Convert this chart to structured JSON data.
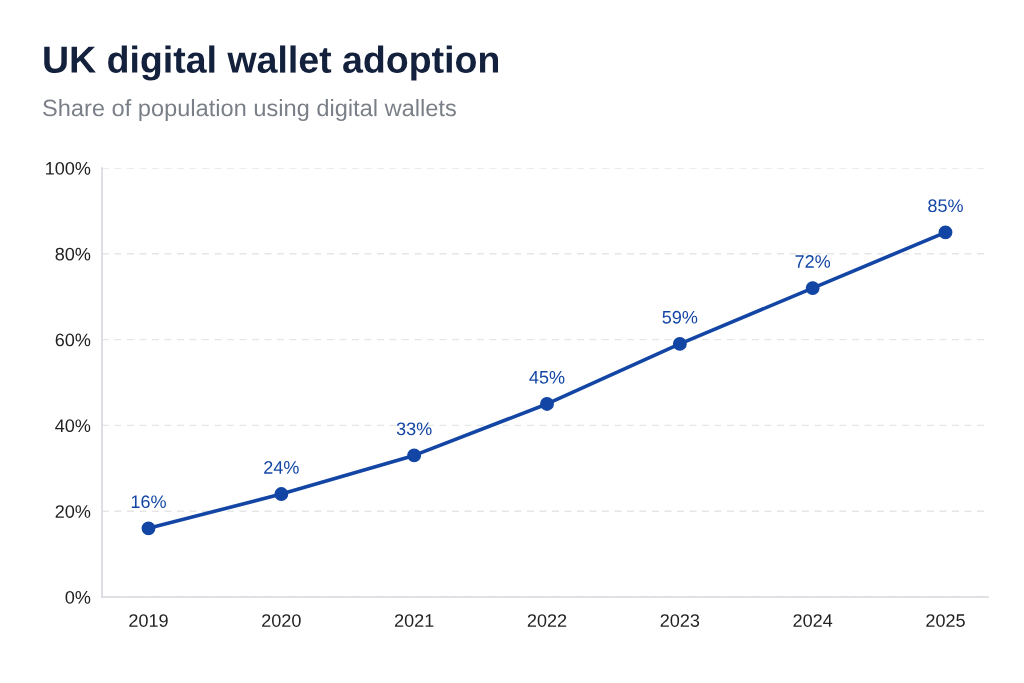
{
  "chart_data": {
    "type": "line",
    "title": "UK digital wallet adoption",
    "subtitle": "Share of population using digital wallets",
    "categories": [
      "2019",
      "2020",
      "2021",
      "2022",
      "2023",
      "2024",
      "2025"
    ],
    "series": [
      {
        "color": "#1346a4",
        "values": [
          16,
          24,
          33,
          45,
          59,
          72,
          85
        ],
        "value_labels": [
          "16%",
          "24%",
          "33%",
          "45%",
          "59%",
          "72%",
          "85%"
        ]
      }
    ],
    "ylim": [
      0,
      100
    ],
    "yticks": [
      {
        "value": 0,
        "label": "0%"
      },
      {
        "value": 20,
        "label": "20%"
      },
      {
        "value": 40,
        "label": "40%"
      },
      {
        "value": 60,
        "label": "60%"
      },
      {
        "value": 80,
        "label": "80%"
      },
      {
        "value": 100,
        "label": "100%"
      }
    ],
    "grid": "y",
    "marker": "circle",
    "line_style": "solid"
  }
}
